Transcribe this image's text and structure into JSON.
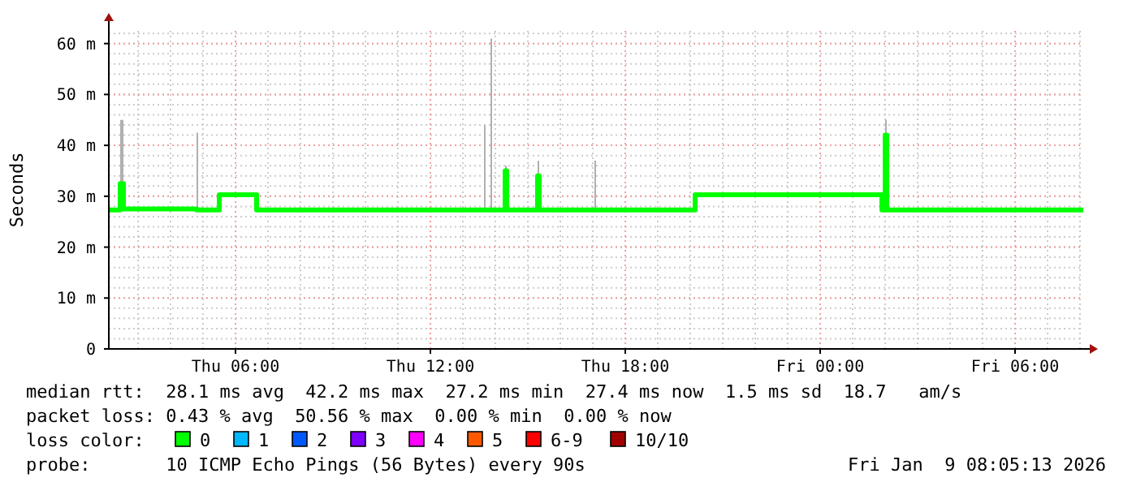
{
  "chart_data": {
    "type": "line",
    "ylabel": "Seconds",
    "x": [
      "2026-01-08T02:06",
      "2026-01-08T02:24",
      "2026-01-08T02:27",
      "2026-01-08T02:33",
      "2026-01-08T04:48",
      "2026-01-08T04:51",
      "2026-01-08T05:27",
      "2026-01-08T05:30",
      "2026-01-08T06:36",
      "2026-01-08T06:39",
      "2026-01-08T13:39",
      "2026-01-08T13:42",
      "2026-01-08T13:51",
      "2026-01-08T13:54",
      "2026-01-08T14:15",
      "2026-01-08T14:18",
      "2026-01-08T14:21",
      "2026-01-08T15:15",
      "2026-01-08T15:18",
      "2026-01-08T15:21",
      "2026-01-08T17:03",
      "2026-01-08T17:06",
      "2026-01-08T20:03",
      "2026-01-08T20:09",
      "2026-01-09T01:45",
      "2026-01-09T01:54",
      "2026-01-09T02:00",
      "2026-01-09T02:03",
      "2026-01-09T08:06"
    ],
    "series": [
      {
        "name": "0",
        "color": "#00ff00",
        "values": [
          27.3,
          27.3,
          32.5,
          27.5,
          27.3,
          27.3,
          27.3,
          30.3,
          30.3,
          27.3,
          27.3,
          27.3,
          27.3,
          27.3,
          27.3,
          35,
          27.3,
          27.3,
          34,
          27.3,
          27.3,
          27.3,
          27.3,
          30.3,
          30.3,
          27.3,
          42,
          27.3,
          27.3
        ],
        "lower": [
          27.3,
          27.3,
          32.5,
          27.5,
          27.3,
          27.3,
          27.3,
          30.3,
          30.3,
          27.3,
          27.3,
          27.3,
          27.3,
          27.3,
          27.3,
          35,
          27.3,
          27.3,
          34,
          27.3,
          27.3,
          27.3,
          27.3,
          30.3,
          30.3,
          27.3,
          42,
          27.3,
          27.3
        ],
        "upper": [
          27.3,
          27.3,
          45,
          27.5,
          42.5,
          27.3,
          27.3,
          30.3,
          30.3,
          27.3,
          44,
          27.3,
          61,
          27.3,
          27.3,
          36,
          27.3,
          27.3,
          37,
          27.3,
          37,
          27.3,
          27.3,
          30.3,
          30.3,
          27.3,
          45,
          27.3,
          27.3
        ]
      },
      {
        "name": "1",
        "color": "#00b8ff",
        "values": [
          null,
          null,
          null,
          null,
          null,
          null,
          null,
          null,
          null,
          null,
          null,
          null,
          null,
          null,
          null,
          null,
          null,
          null,
          null,
          null,
          null,
          null,
          null,
          null,
          null,
          null,
          null,
          null,
          null
        ]
      },
      {
        "name": "2",
        "color": "#0059ff",
        "values": [
          null,
          null,
          null,
          null,
          null,
          null,
          null,
          null,
          null,
          null,
          null,
          null,
          null,
          null,
          null,
          null,
          null,
          null,
          null,
          null,
          null,
          null,
          null,
          null,
          null,
          null,
          null,
          null,
          null
        ]
      },
      {
        "name": "3",
        "color": "#7e00ff",
        "values": [
          null,
          null,
          null,
          null,
          null,
          null,
          null,
          null,
          null,
          null,
          null,
          null,
          null,
          null,
          null,
          null,
          null,
          null,
          null,
          null,
          null,
          null,
          null,
          null,
          null,
          null,
          null,
          null,
          null
        ]
      },
      {
        "name": "4",
        "color": "#ff00ff",
        "values": [
          null,
          null,
          null,
          null,
          null,
          null,
          null,
          null,
          null,
          null,
          null,
          null,
          null,
          null,
          null,
          null,
          null,
          null,
          null,
          null,
          null,
          null,
          null,
          null,
          null,
          null,
          null,
          null,
          null
        ]
      },
      {
        "name": "5",
        "color": "#ff5900",
        "values": [
          null,
          null,
          null,
          null,
          null,
          null,
          null,
          null,
          null,
          null,
          null,
          null,
          null,
          null,
          null,
          null,
          null,
          null,
          null,
          null,
          null,
          null,
          null,
          null,
          null,
          null,
          null,
          null,
          null
        ]
      },
      {
        "name": "6-9",
        "color": "#ff0000",
        "values": [
          null,
          null,
          null,
          null,
          null,
          null,
          null,
          null,
          null,
          null,
          null,
          null,
          null,
          null,
          null,
          null,
          null,
          null,
          null,
          null,
          null,
          null,
          null,
          null,
          null,
          null,
          null,
          null,
          null
        ]
      },
      {
        "name": "10/10",
        "color": "#a10000",
        "values": [
          null,
          null,
          null,
          null,
          null,
          null,
          null,
          null,
          null,
          null,
          null,
          null,
          null,
          null,
          null,
          null,
          null,
          null,
          null,
          null,
          null,
          null,
          null,
          null,
          null,
          null,
          null,
          null,
          null
        ]
      }
    ],
    "xlim": [
      "2026-01-08T02:06",
      "2026-01-09T08:06"
    ],
    "xticks": [
      {
        "value": "2026-01-08T06:00",
        "label": "Thu 06:00"
      },
      {
        "value": "2026-01-08T12:00",
        "label": "Thu 12:00"
      },
      {
        "value": "2026-01-08T18:00",
        "label": "Thu 18:00"
      },
      {
        "value": "2026-01-09T00:00",
        "label": "Fri 00:00"
      },
      {
        "value": "2026-01-09T06:00",
        "label": "Fri 06:00"
      }
    ],
    "ylim": [
      0,
      62.5
    ],
    "yticks": [
      0,
      {
        "value": 10,
        "label": "10 m"
      },
      {
        "value": 20,
        "label": "20 m"
      },
      {
        "value": 30,
        "label": "30 m"
      },
      {
        "value": 40,
        "label": "40 m"
      },
      {
        "value": 50,
        "label": "50 m"
      },
      {
        "value": 60,
        "label": "60 m"
      }
    ],
    "grid": true,
    "legend": "bottom",
    "legend_title": "loss color:",
    "annotations": [
      "median rtt:  28.1 ms avg  42.2 ms max  27.2 ms min  27.4 ms now  1.5 ms sd  18.7   am/s",
      "packet loss: 0.43 % avg  50.56 % max  0.00 % min  0.00 % now",
      "probe:       10 ICMP Echo Pings (56 Bytes) every 90s",
      "Fri Jan  9 08:05:13 2026"
    ]
  }
}
